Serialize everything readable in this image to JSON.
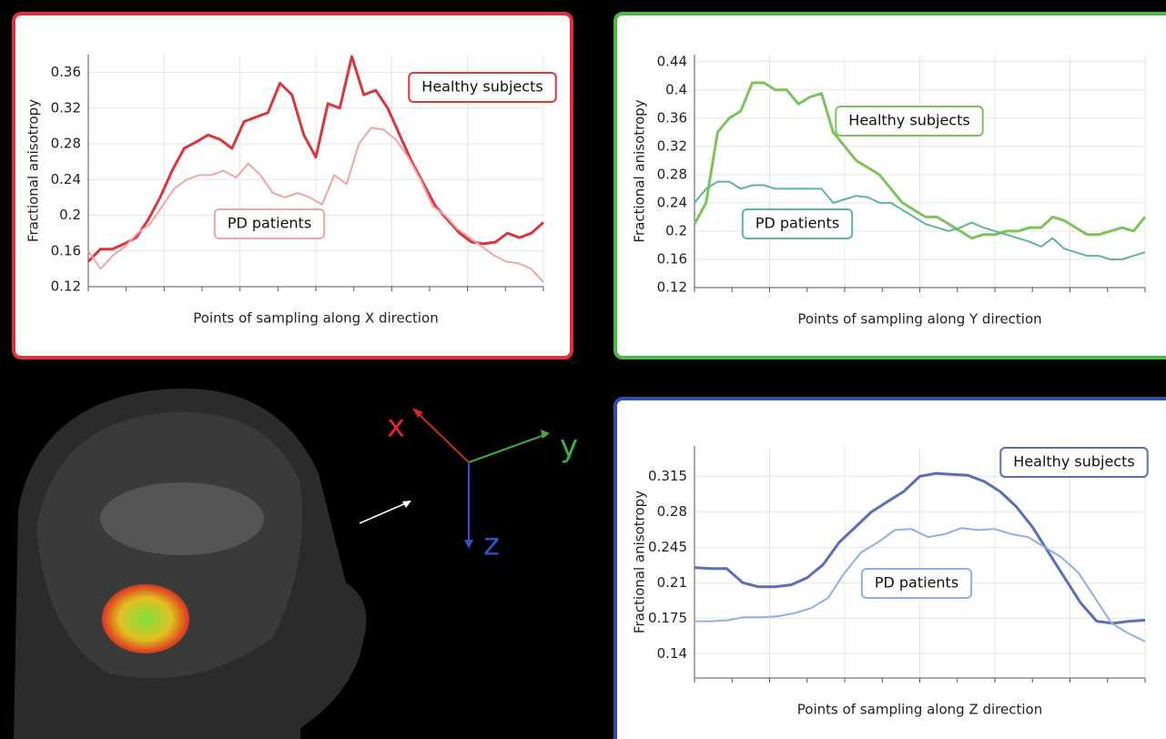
{
  "chart_data": [
    {
      "type": "line",
      "xlabel": "Points of sampling along X direction",
      "ylabel": "Fractional anisotropy",
      "ylim": [
        0.12,
        0.38
      ],
      "yticks": [
        0.12,
        0.16,
        0.2,
        0.24,
        0.28,
        0.32,
        0.36
      ],
      "grid": true,
      "frame_color": "#e0303a",
      "series": [
        {
          "name": "Healthy subjects",
          "color": "#d9363e",
          "values": [
            0.148,
            0.162,
            0.162,
            0.168,
            0.175,
            0.195,
            0.22,
            0.25,
            0.275,
            0.282,
            0.29,
            0.285,
            0.275,
            0.305,
            0.31,
            0.315,
            0.348,
            0.335,
            0.29,
            0.265,
            0.325,
            0.32,
            0.378,
            0.335,
            0.34,
            0.32,
            0.29,
            0.26,
            0.235,
            0.21,
            0.195,
            0.18,
            0.17,
            0.168,
            0.17,
            0.18,
            0.175,
            0.18,
            0.192
          ]
        },
        {
          "name": "PD patients",
          "color": "#f2a5a5",
          "values": [
            0.16,
            0.14,
            0.155,
            0.165,
            0.18,
            0.19,
            0.21,
            0.23,
            0.24,
            0.245,
            0.245,
            0.25,
            0.242,
            0.258,
            0.245,
            0.225,
            0.22,
            0.225,
            0.22,
            0.212,
            0.245,
            0.235,
            0.28,
            0.298,
            0.296,
            0.285,
            0.265,
            0.24,
            0.21,
            0.2,
            0.185,
            0.175,
            0.165,
            0.155,
            0.148,
            0.146,
            0.14,
            0.125
          ]
        }
      ]
    },
    {
      "type": "line",
      "xlabel": "Points of sampling along Y direction",
      "ylabel": "Fractional anisotropy",
      "ylim": [
        0.12,
        0.45
      ],
      "yticks": [
        0.12,
        0.16,
        0.2,
        0.24,
        0.28,
        0.32,
        0.36,
        0.4,
        0.44
      ],
      "grid": true,
      "frame_color": "#4cb848",
      "series": [
        {
          "name": "Healthy subjects",
          "color": "#7cc45a",
          "values": [
            0.21,
            0.24,
            0.34,
            0.36,
            0.37,
            0.41,
            0.41,
            0.4,
            0.4,
            0.38,
            0.39,
            0.395,
            0.34,
            0.32,
            0.3,
            0.29,
            0.28,
            0.26,
            0.24,
            0.23,
            0.22,
            0.22,
            0.21,
            0.2,
            0.19,
            0.195,
            0.195,
            0.2,
            0.2,
            0.205,
            0.205,
            0.22,
            0.215,
            0.205,
            0.195,
            0.195,
            0.2,
            0.205,
            0.2,
            0.22
          ]
        },
        {
          "name": "PD patients",
          "color": "#5cb890",
          "values": [
            0.24,
            0.26,
            0.27,
            0.27,
            0.26,
            0.265,
            0.265,
            0.26,
            0.26,
            0.26,
            0.26,
            0.26,
            0.24,
            0.245,
            0.25,
            0.248,
            0.24,
            0.24,
            0.23,
            0.22,
            0.21,
            0.205,
            0.2,
            0.205,
            0.212,
            0.205,
            0.2,
            0.195,
            0.19,
            0.185,
            0.178,
            0.19,
            0.175,
            0.17,
            0.165,
            0.165,
            0.16,
            0.16,
            0.165,
            0.17
          ]
        }
      ]
    },
    {
      "type": "line",
      "xlabel": "Points of sampling along Z direction",
      "ylabel": "Fractional anisotropy",
      "ylim": [
        0.116,
        0.345
      ],
      "yticks": [
        0.14,
        0.175,
        0.21,
        0.245,
        0.28,
        0.315
      ],
      "grid": true,
      "frame_color": "#3050a8",
      "series": [
        {
          "name": "Healthy subjects",
          "color": "#5a6fb8",
          "values": [
            0.225,
            0.224,
            0.224,
            0.21,
            0.206,
            0.206,
            0.208,
            0.215,
            0.228,
            0.25,
            0.265,
            0.28,
            0.29,
            0.3,
            0.315,
            0.318,
            0.317,
            0.316,
            0.31,
            0.3,
            0.285,
            0.265,
            0.24,
            0.215,
            0.19,
            0.172,
            0.17,
            0.172,
            0.173
          ]
        },
        {
          "name": "PD patients",
          "color": "#8fb0e0",
          "values": [
            0.172,
            0.172,
            0.173,
            0.176,
            0.176,
            0.177,
            0.18,
            0.185,
            0.195,
            0.22,
            0.24,
            0.25,
            0.262,
            0.263,
            0.255,
            0.258,
            0.264,
            0.262,
            0.263,
            0.258,
            0.255,
            0.245,
            0.235,
            0.22,
            0.195,
            0.17,
            0.16,
            0.152
          ]
        }
      ]
    }
  ],
  "axes_labels": {
    "x": "x",
    "y": "y",
    "z": "z"
  }
}
